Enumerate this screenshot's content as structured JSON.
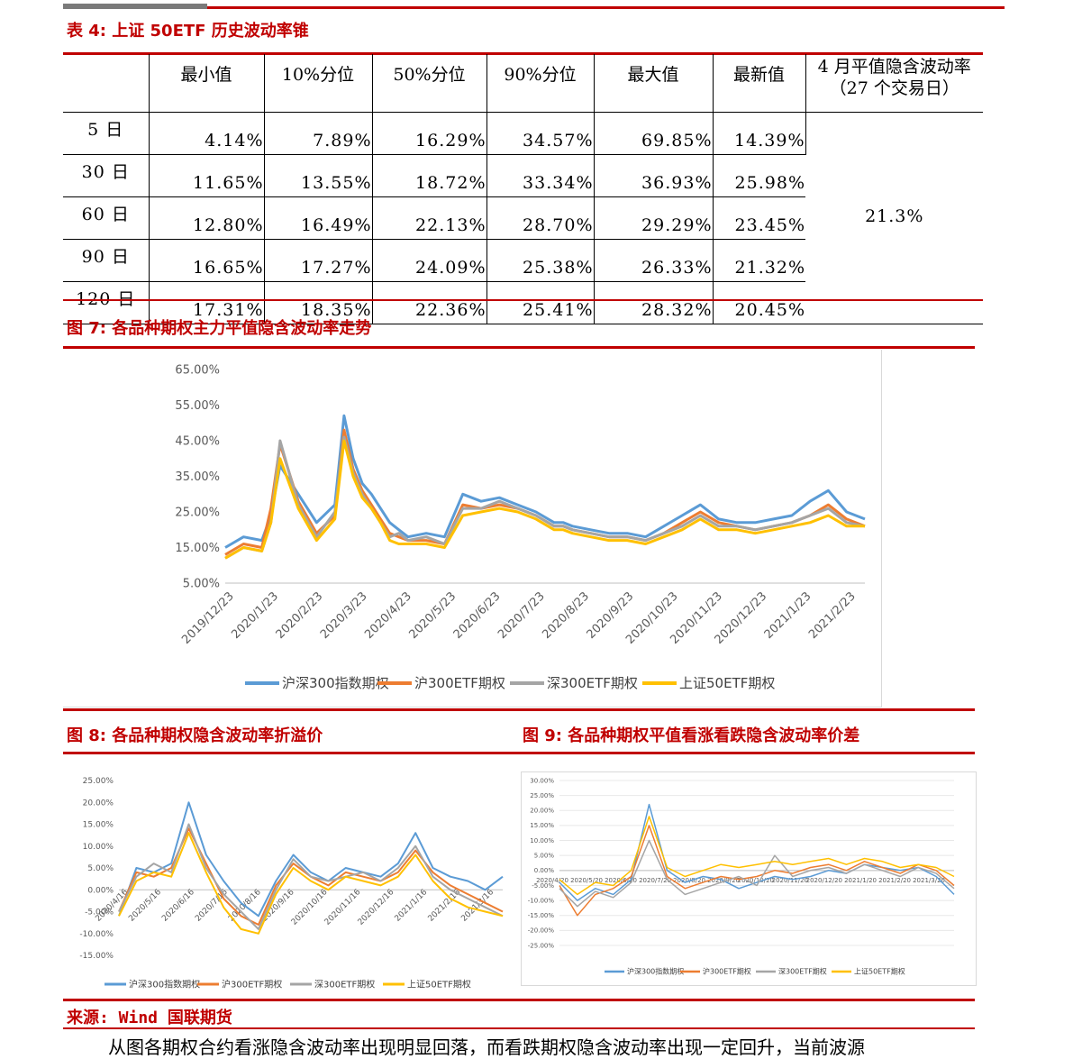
{
  "table4": {
    "title": "表 4: 上证 50ETF 历史波动率锥",
    "headers": [
      "",
      "最小值",
      "10%分位",
      "50%分位",
      "90%分位",
      "最大值",
      "最新值",
      "4 月平值隐含波动率\n（27 个交易日）"
    ],
    "rows": [
      {
        "label": "5 日",
        "values": [
          "4.14%",
          "7.89%",
          "16.29%",
          "34.57%",
          "69.85%",
          "14.39%"
        ]
      },
      {
        "label": "30 日",
        "values": [
          "11.65%",
          "13.55%",
          "18.72%",
          "33.34%",
          "36.93%",
          "25.98%"
        ]
      },
      {
        "label": "60 日",
        "values": [
          "12.80%",
          "16.49%",
          "22.13%",
          "28.70%",
          "29.29%",
          "23.45%"
        ]
      },
      {
        "label": "90 日",
        "values": [
          "16.65%",
          "17.27%",
          "24.09%",
          "25.38%",
          "26.33%",
          "21.32%"
        ]
      },
      {
        "label": "120 日",
        "values": [
          "17.31%",
          "18.35%",
          "22.36%",
          "25.41%",
          "28.32%",
          "20.45%"
        ]
      }
    ],
    "implied_vol": "21.3%"
  },
  "fig7_title": "图 7: 各品种期权主力平值隐含波动率走势",
  "fig8_title": "图 8: 各品种期权隐含波动率折溢价",
  "fig9_title": "图 9: 各品种期权平值看涨看跌隐含波动率价差",
  "source": "来源: Wind 国联期货",
  "cut_text": "从图各期权合约看涨隐含波动率出现明显回落，而看跌期权隐含波动率出现一定回升，当前波源",
  "colors": {
    "s1": "#5b9bd5",
    "s2": "#ed7d31",
    "s3": "#a5a5a5",
    "s4": "#ffc000",
    "accent": "#c00000"
  },
  "chart_data": [
    {
      "id": "fig7",
      "type": "line",
      "ylim": [
        5,
        65
      ],
      "yticks": [
        "65.00%",
        "55.00%",
        "45.00%",
        "35.00%",
        "25.00%",
        "15.00%",
        "5.00%"
      ],
      "xticks": [
        "2019/12/23",
        "2020/1/23",
        "2020/2/23",
        "2020/3/23",
        "2020/4/23",
        "2020/5/23",
        "2020/6/23",
        "2020/7/23",
        "2020/8/23",
        "2020/9/23",
        "2020/10/23",
        "2020/11/23",
        "2020/12/23",
        "2021/1/23",
        "2021/2/23"
      ],
      "x_index": [
        0,
        2,
        4,
        5,
        6,
        8,
        10,
        12,
        13,
        14,
        15,
        16,
        17,
        18,
        19,
        20,
        22,
        24,
        26,
        28,
        30,
        32,
        34,
        36,
        37,
        38,
        40,
        42,
        44,
        46,
        48,
        50,
        52,
        54,
        56,
        58,
        60,
        62,
        64,
        66,
        68,
        70
      ],
      "series": [
        {
          "name": "沪深300指数期权",
          "values": [
            15,
            18,
            17,
            24,
            38,
            30,
            22,
            27,
            52,
            40,
            33,
            30,
            26,
            22,
            20,
            18,
            19,
            18,
            30,
            28,
            29,
            27,
            25,
            22,
            22,
            21,
            20,
            19,
            19,
            18,
            21,
            24,
            27,
            23,
            22,
            22,
            23,
            24,
            28,
            31,
            25,
            23
          ]
        },
        {
          "name": "沪300ETF期权",
          "values": [
            13,
            16,
            15,
            26,
            44,
            28,
            19,
            24,
            48,
            37,
            31,
            27,
            23,
            19,
            18,
            17,
            17,
            16,
            27,
            26,
            27,
            26,
            24,
            21,
            21,
            20,
            19,
            18,
            18,
            17,
            19,
            22,
            25,
            22,
            21,
            20,
            21,
            22,
            24,
            27,
            23,
            21
          ]
        },
        {
          "name": "深300ETF期权",
          "values": [
            12,
            15,
            14,
            22,
            45,
            27,
            18,
            25,
            46,
            36,
            30,
            26,
            22,
            18,
            19,
            17,
            18,
            16,
            26,
            26,
            28,
            26,
            24,
            21,
            21,
            20,
            19,
            18,
            18,
            17,
            19,
            21,
            24,
            21,
            21,
            20,
            21,
            22,
            24,
            26,
            22,
            21
          ]
        },
        {
          "name": "上证50ETF期权",
          "values": [
            12,
            15,
            14,
            22,
            40,
            26,
            17,
            23,
            45,
            35,
            29,
            26,
            22,
            17,
            16,
            16,
            16,
            15,
            24,
            25,
            26,
            25,
            23,
            20,
            20,
            19,
            18,
            17,
            17,
            16,
            18,
            20,
            23,
            20,
            20,
            19,
            20,
            21,
            22,
            24,
            21,
            21
          ]
        }
      ]
    },
    {
      "id": "fig8",
      "type": "line",
      "ylim": [
        -15,
        25
      ],
      "yticks": [
        "25.00%",
        "20.00%",
        "15.00%",
        "10.00%",
        "5.00%",
        "0.00%",
        "-5.00%",
        "-10.00%",
        "-15.00%"
      ],
      "xticks": [
        "2020/4/16",
        "2020/5/16",
        "2020/6/16",
        "2020/7/16",
        "2020/8/16",
        "2020/9/16",
        "2020/10/16",
        "2020/11/16",
        "2020/12/16",
        "2021/1/16",
        "2021/2/16",
        "2021/3/16"
      ],
      "x_index": [
        0,
        2,
        4,
        6,
        8,
        10,
        12,
        14,
        16,
        18,
        20,
        22,
        24,
        26,
        28,
        30,
        32,
        34,
        36,
        38,
        40,
        42,
        44
      ],
      "series": [
        {
          "name": "沪深300指数期权",
          "values": [
            -6,
            5,
            4,
            6,
            20,
            8,
            2,
            -3,
            -6,
            2,
            8,
            4,
            2,
            5,
            4,
            3,
            6,
            13,
            5,
            3,
            2,
            0,
            3
          ]
        },
        {
          "name": "沪300ETF期权",
          "values": [
            -5,
            4,
            3,
            5,
            14,
            6,
            -2,
            -6,
            -8,
            1,
            6,
            3,
            1,
            4,
            3,
            2,
            4,
            9,
            4,
            1,
            -1,
            -3,
            -5
          ]
        },
        {
          "name": "深300ETF期权",
          "values": [
            -5,
            3,
            6,
            4,
            15,
            5,
            -1,
            -5,
            -9,
            0,
            7,
            3,
            2,
            3,
            4,
            2,
            5,
            10,
            3,
            0,
            -2,
            -4,
            -6
          ]
        },
        {
          "name": "上证50ETF期权",
          "values": [
            -6,
            2,
            4,
            3,
            13,
            4,
            -4,
            -9,
            -10,
            -1,
            5,
            2,
            0,
            3,
            2,
            1,
            3,
            8,
            2,
            -2,
            -4,
            -5,
            -6
          ]
        }
      ]
    },
    {
      "id": "fig9",
      "type": "line",
      "ylim": [
        -25,
        30
      ],
      "yticks": [
        "30.00%",
        "25.00%",
        "20.00%",
        "15.00%",
        "10.00%",
        "5.00%",
        "0.00%",
        "-5.00%",
        "-10.00%",
        "-15.00%",
        "-20.00%",
        "-25.00%"
      ],
      "xticks": [
        "2020/4/20",
        "2020/5/20",
        "2020/6/20",
        "2020/7/20",
        "2020/8/20",
        "2020/9/20",
        "2020/10/20",
        "2020/11/20",
        "2020/12/20",
        "2021/1/20",
        "2021/2/20",
        "2021/3/20"
      ],
      "x_index": [
        0,
        2,
        4,
        6,
        8,
        10,
        12,
        14,
        16,
        18,
        20,
        22,
        24,
        26,
        28,
        30,
        32,
        34,
        36,
        38,
        40,
        42,
        44
      ],
      "series": [
        {
          "name": "沪深300指数期权",
          "values": [
            -4,
            -10,
            -6,
            -8,
            -3,
            22,
            0,
            -4,
            -2,
            -3,
            -6,
            -4,
            -2,
            -3,
            -2,
            0,
            -1,
            2,
            1,
            0,
            1,
            -2,
            -8
          ]
        },
        {
          "name": "沪300ETF期权",
          "values": [
            -5,
            -15,
            -8,
            -6,
            -2,
            15,
            -2,
            -6,
            -4,
            -2,
            -3,
            -2,
            0,
            -1,
            1,
            2,
            0,
            3,
            1,
            -1,
            2,
            0,
            -5
          ]
        },
        {
          "name": "深300ETF期权",
          "values": [
            -6,
            -12,
            -7,
            -9,
            -4,
            10,
            -3,
            -8,
            -6,
            -4,
            -2,
            -5,
            5,
            -2,
            0,
            1,
            -1,
            2,
            0,
            -2,
            1,
            -1,
            -6
          ]
        },
        {
          "name": "上证50ETF期权",
          "values": [
            -3,
            -8,
            -4,
            -5,
            0,
            18,
            1,
            -2,
            0,
            2,
            1,
            2,
            3,
            2,
            3,
            4,
            2,
            4,
            3,
            1,
            2,
            1,
            -2
          ]
        }
      ]
    }
  ]
}
